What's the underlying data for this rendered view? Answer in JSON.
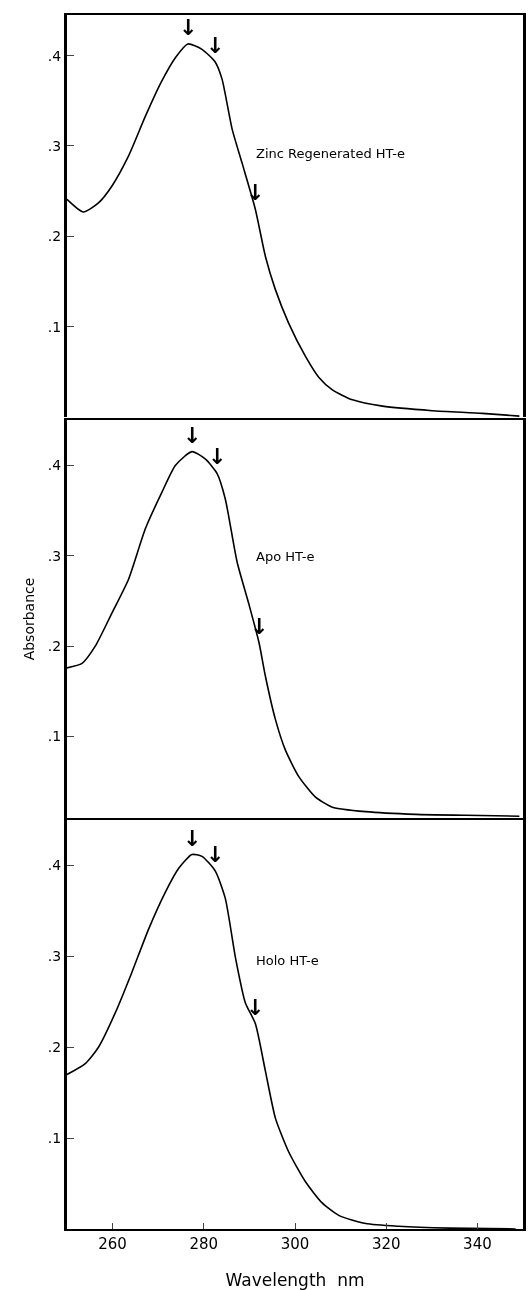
{
  "chart_data": [
    {
      "type": "line",
      "xlim": [
        250,
        350
      ],
      "ylim": [
        0,
        0.445
      ],
      "xticks": [
        260,
        280,
        300,
        320,
        340
      ],
      "yticks": [
        {
          "value": 0.1,
          "label": ".1"
        },
        {
          "value": 0.2,
          "label": ".2"
        },
        {
          "value": 0.3,
          "label": ".3"
        },
        {
          "value": 0.4,
          "label": ".4"
        }
      ],
      "tick_labels": "y",
      "grid": false,
      "legend": false,
      "marker": "none",
      "line_style": "solid",
      "x": [
        250,
        253.6,
        256.9,
        259.9,
        263.5,
        267.2,
        270.8,
        273.8,
        276.5,
        279.6,
        282.5,
        284,
        286.2,
        288.4,
        291.3,
        293.5,
        295.7,
        298.6,
        302.3,
        305.2,
        308.2,
        312.6,
        319.2,
        330.1,
        341.1,
        349.2
      ],
      "series": [
        {
          "name": "Zinc Regenerated HT-e",
          "color": "#000000",
          "values": [
            0.241,
            0.227,
            0.237,
            0.256,
            0.289,
            0.333,
            0.372,
            0.398,
            0.413,
            0.407,
            0.393,
            0.374,
            0.319,
            0.281,
            0.23,
            0.178,
            0.141,
            0.104,
            0.067,
            0.044,
            0.03,
            0.019,
            0.012,
            0.007,
            0.004,
            0.001
          ]
        }
      ],
      "annotations": [
        {
          "text": "↓",
          "x": 276.5,
          "y": 0.413
        },
        {
          "text": "↓",
          "x": 282.5,
          "y": 0.393
        },
        {
          "text": "↓",
          "x": 291.3,
          "y": 0.23
        }
      ]
    },
    {
      "type": "line",
      "xlim": [
        250,
        350
      ],
      "ylim": [
        0.01,
        0.45
      ],
      "xticks": [
        260,
        280,
        300,
        320,
        340
      ],
      "yticks": [
        {
          "value": 0.1,
          "label": ".1"
        },
        {
          "value": 0.2,
          "label": ".2"
        },
        {
          "value": 0.3,
          "label": ".3"
        },
        {
          "value": 0.4,
          "label": ".4"
        }
      ],
      "tick_labels": "y",
      "grid": false,
      "legend": false,
      "marker": "none",
      "line_style": "solid",
      "ylabel": "Absorbance",
      "x": [
        250,
        253.3,
        256.2,
        259.9,
        263.5,
        267.2,
        270.8,
        273.8,
        277.4,
        280.3,
        282.9,
        284.7,
        287.3,
        289.8,
        292.1,
        293.5,
        295.7,
        297.9,
        300.8,
        304.5,
        308.2,
        315.5,
        326.5,
        337.5,
        349.2
      ],
      "series": [
        {
          "name": "Apo HT-e",
          "color": "#000000",
          "values": [
            0.176,
            0.181,
            0.2,
            0.237,
            0.274,
            0.33,
            0.37,
            0.4,
            0.415,
            0.407,
            0.391,
            0.363,
            0.293,
            0.248,
            0.204,
            0.167,
            0.119,
            0.085,
            0.056,
            0.033,
            0.022,
            0.017,
            0.014,
            0.013,
            0.012
          ]
        }
      ],
      "annotations": [
        {
          "text": "↓",
          "x": 277.4,
          "y": 0.415
        },
        {
          "text": "↓",
          "x": 282.9,
          "y": 0.391
        },
        {
          "text": "↓",
          "x": 292.1,
          "y": 0.204
        }
      ]
    },
    {
      "type": "line",
      "xlim": [
        250,
        350
      ],
      "ylim": [
        0,
        0.45
      ],
      "xticks": [
        260,
        280,
        300,
        320,
        340
      ],
      "yticks": [
        {
          "value": 0.1,
          "label": ".1"
        },
        {
          "value": 0.2,
          "label": ".2"
        },
        {
          "value": 0.3,
          "label": ".3"
        },
        {
          "value": 0.4,
          "label": ".4"
        }
      ],
      "grid": false,
      "legend": false,
      "marker": "none",
      "line_style": "solid",
      "xlabel": "Wavelength  nm",
      "x": [
        250,
        254,
        256.9,
        260.6,
        264.2,
        267.9,
        271.6,
        274.5,
        277.4,
        279.6,
        282.5,
        284.7,
        287,
        289.1,
        291.3,
        293.5,
        295.7,
        298.6,
        302.3,
        305.9,
        309.6,
        315.5,
        322.8,
        333.8,
        348.4
      ],
      "series": [
        {
          "name": "Holo HT-e",
          "color": "#000000",
          "values": [
            0.17,
            0.182,
            0.2,
            0.238,
            0.282,
            0.33,
            0.371,
            0.397,
            0.412,
            0.41,
            0.394,
            0.364,
            0.297,
            0.249,
            0.226,
            0.174,
            0.122,
            0.085,
            0.052,
            0.029,
            0.015,
            0.006,
            0.003,
            0.001,
            0
          ]
        }
      ],
      "annotations": [
        {
          "text": "↓",
          "x": 277.4,
          "y": 0.412
        },
        {
          "text": "↓",
          "x": 282.5,
          "y": 0.394
        },
        {
          "text": "↓",
          "x": 291.3,
          "y": 0.226
        }
      ]
    }
  ]
}
